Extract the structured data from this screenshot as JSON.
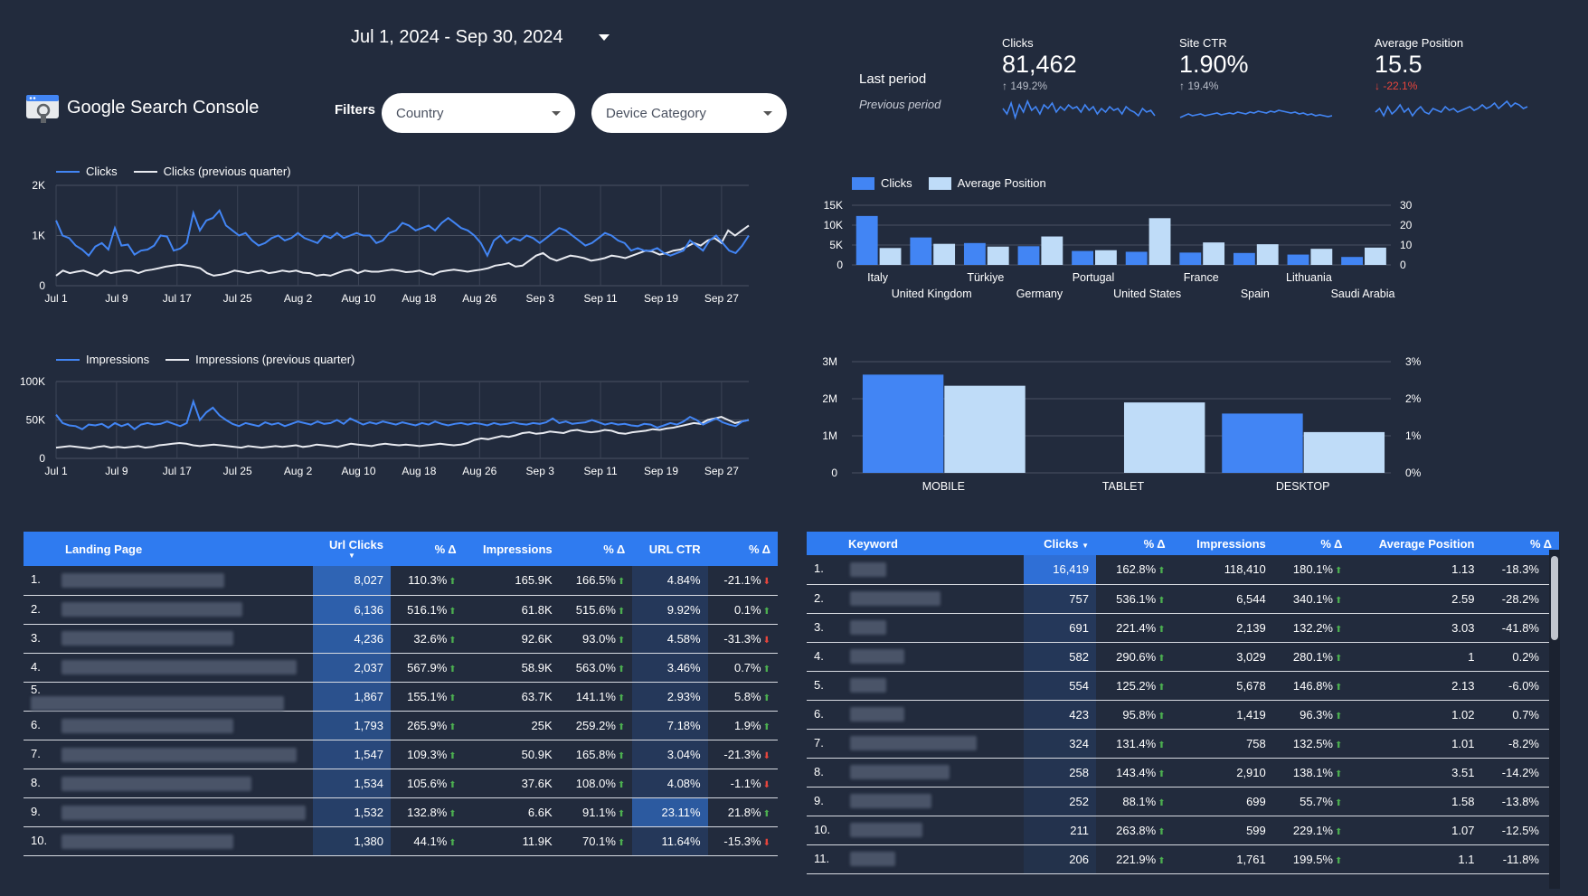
{
  "header": {
    "date_range": "Jul 1, 2024 - Sep 30, 2024",
    "brand": "Google Search Console",
    "filters_label": "Filters",
    "filter_country": "Country",
    "filter_device": "Device Category",
    "last_period": "Last period",
    "previous_period": "Previous period"
  },
  "kpis": [
    {
      "label": "Clicks",
      "value": "81,462",
      "delta": "149.2%",
      "dir": "up"
    },
    {
      "label": "Site CTR",
      "value": "1.90%",
      "delta": "19.4%",
      "dir": "up"
    },
    {
      "label": "Average Position",
      "value": "15.5",
      "delta": "-22.1%",
      "dir": "down"
    }
  ],
  "colors": {
    "primary": "#4285f4",
    "secondary": "#bfdcf8",
    "prev_line": "#e8eaf0",
    "bg": "#222b3d",
    "accent_header": "#2f7bf0"
  },
  "chart_data": [
    {
      "type": "line",
      "legend": [
        "Clicks",
        "Clicks (previous quarter)"
      ],
      "x_ticks": [
        "Jul 1",
        "Jul 9",
        "Jul 17",
        "Jul 25",
        "Aug 2",
        "Aug 10",
        "Aug 18",
        "Aug 26",
        "Sep 3",
        "Sep 11",
        "Sep 19",
        "Sep 27"
      ],
      "y_ticks": [
        "0",
        "1K",
        "2K"
      ],
      "ylim": [
        0,
        2000
      ],
      "series": [
        {
          "name": "Clicks",
          "values": [
            1300,
            1000,
            950,
            800,
            720,
            600,
            780,
            850,
            720,
            1150,
            800,
            820,
            620,
            700,
            720,
            800,
            1000,
            980,
            700,
            740,
            850,
            1450,
            1100,
            1300,
            1350,
            1500,
            1200,
            1100,
            1000,
            1050,
            900,
            800,
            850,
            950,
            1000,
            900,
            950,
            1050,
            950,
            900,
            850,
            1000,
            950,
            1050,
            950,
            1000,
            1050,
            1000,
            1000,
            850,
            900,
            1050,
            1100,
            1250,
            1200,
            1100,
            1150,
            1200,
            1100,
            1250,
            1350,
            1250,
            1150,
            1100,
            1000,
            850,
            600,
            900,
            1000,
            850,
            950,
            900,
            1000,
            950,
            850,
            950,
            1050,
            1150,
            1100,
            1000,
            900,
            800,
            850,
            950,
            1050,
            1000,
            900,
            850,
            700,
            750,
            700,
            700,
            750,
            650,
            600,
            650,
            700,
            900,
            800,
            700,
            900,
            1000,
            850,
            700,
            650,
            800,
            1000
          ]
        },
        {
          "name": "Clicks (previous quarter)",
          "values": [
            200,
            300,
            250,
            280,
            300,
            250,
            200,
            300,
            250,
            280,
            300,
            300,
            250,
            300,
            320,
            350,
            380,
            400,
            420,
            400,
            380,
            350,
            250,
            200,
            220,
            250,
            300,
            280,
            250,
            280,
            300,
            250,
            270,
            300,
            280,
            300,
            260,
            250,
            200,
            220,
            200,
            250,
            300,
            320,
            250,
            300,
            280,
            280,
            300,
            320,
            300,
            270,
            280,
            300,
            250,
            220,
            280,
            300,
            320,
            300,
            280,
            300,
            320,
            350,
            400,
            420,
            450,
            380,
            400,
            500,
            600,
            650,
            550,
            500,
            550,
            600,
            580,
            550,
            500,
            520,
            550,
            600,
            580,
            550,
            600,
            650,
            700,
            680,
            620,
            650,
            700,
            720,
            780,
            850,
            800,
            900,
            950,
            850,
            1100,
            1000,
            1100,
            1200
          ]
        }
      ]
    },
    {
      "type": "line",
      "legend": [
        "Impressions",
        "Impressions (previous quarter)"
      ],
      "x_ticks": [
        "Jul 1",
        "Jul 9",
        "Jul 17",
        "Jul 25",
        "Aug 2",
        "Aug 10",
        "Aug 18",
        "Aug 26",
        "Sep 3",
        "Sep 11",
        "Sep 19",
        "Sep 27"
      ],
      "y_ticks": [
        "0",
        "50K",
        "100K"
      ],
      "ylim": [
        0,
        100000
      ],
      "series": [
        {
          "name": "Impressions",
          "values": [
            57000,
            46000,
            43000,
            42000,
            38000,
            44000,
            43000,
            45000,
            40000,
            46000,
            42000,
            45000,
            38000,
            44000,
            46000,
            44000,
            45000,
            48000,
            45000,
            42000,
            46000,
            74000,
            50000,
            60000,
            66000,
            56000,
            50000,
            45000,
            42000,
            46000,
            44000,
            42000,
            47000,
            44000,
            46000,
            42000,
            45000,
            48000,
            46000,
            44000,
            48000,
            45000,
            46000,
            50000,
            45000,
            52000,
            48000,
            44000,
            47000,
            45000,
            48000,
            46000,
            44000,
            47000,
            45000,
            43000,
            46000,
            44000,
            48000,
            45000,
            43000,
            45000,
            46000,
            44000,
            46000,
            45000,
            43000,
            46000,
            44000,
            45000,
            47000,
            45000,
            44000,
            46000,
            45000,
            47000,
            52000,
            46000,
            48000,
            45000,
            46000,
            47000,
            50000,
            47000,
            44000,
            46000,
            44000,
            45000,
            43000,
            42000,
            45000,
            44000,
            40000,
            43000,
            46000,
            44000,
            48000,
            54000,
            50000,
            44000,
            48000,
            52000,
            47000,
            44000,
            42000,
            48000,
            50000
          ]
        },
        {
          "name": "Impressions (previous quarter)",
          "values": [
            14000,
            15000,
            16000,
            15000,
            14000,
            13000,
            15000,
            16000,
            14000,
            15000,
            14000,
            15000,
            16000,
            14000,
            15000,
            17000,
            18000,
            19000,
            20000,
            19000,
            17000,
            16000,
            17000,
            18000,
            17000,
            16000,
            15000,
            14000,
            16000,
            15000,
            14000,
            15000,
            16000,
            15000,
            16000,
            17000,
            15000,
            16000,
            18000,
            17000,
            16000,
            15000,
            17000,
            19000,
            18000,
            17000,
            16000,
            18000,
            19000,
            18000,
            17000,
            18000,
            17000,
            16000,
            17000,
            18000,
            19000,
            18000,
            17000,
            18000,
            20000,
            24000,
            26000,
            25000,
            27000,
            29000,
            28000,
            30000,
            33000,
            34000,
            32000,
            33000,
            35000,
            34000,
            33000,
            36000,
            37000,
            35000,
            34000,
            35000,
            37000,
            36000,
            33000,
            32000,
            34000,
            35000,
            36000,
            38000,
            37000,
            39000,
            40000,
            42000,
            44000,
            46000,
            45000,
            50000,
            52000,
            54000,
            50000,
            46000,
            48000,
            50000
          ]
        }
      ]
    },
    {
      "type": "bar",
      "legend": [
        "Clicks",
        "Average Position"
      ],
      "categories": [
        "Italy",
        "United Kingdom",
        "Türkiye",
        "Germany",
        "Portugal",
        "United States",
        "France",
        "Spain",
        "Lithuania",
        "Saudi Arabia"
      ],
      "series": [
        {
          "name": "Clicks",
          "values": [
            12300,
            6900,
            5500,
            4700,
            3500,
            3300,
            3100,
            3000,
            2600,
            2000
          ]
        },
        {
          "name": "Average Position",
          "values": [
            8.5,
            10.6,
            9.2,
            14.3,
            7.4,
            23.5,
            11.3,
            10.4,
            8.1,
            8.7
          ]
        }
      ],
      "y_ticks": [
        "0",
        "5K",
        "10K",
        "15K"
      ],
      "y2_ticks": [
        "0",
        "10",
        "20",
        "30"
      ],
      "ylim": [
        0,
        15000
      ],
      "y2lim": [
        0,
        30
      ]
    },
    {
      "type": "bar",
      "categories": [
        "MOBILE",
        "TABLET",
        "DESKTOP"
      ],
      "series": [
        {
          "name": "Impressions",
          "values": [
            2650000,
            0,
            1600000
          ]
        },
        {
          "name": "CTR",
          "values": [
            2.35,
            1.9,
            1.1
          ]
        }
      ],
      "y_ticks": [
        "0",
        "1M",
        "2M",
        "3M"
      ],
      "y2_ticks": [
        "0%",
        "1%",
        "2%",
        "3%"
      ],
      "ylim": [
        0,
        3000000
      ],
      "y2lim": [
        0,
        3
      ]
    }
  ],
  "landing_table": {
    "headers": [
      "Landing Page",
      "Url Clicks",
      "% Δ",
      "Impressions",
      "% Δ",
      "URL CTR",
      "% Δ"
    ],
    "rows": [
      {
        "n": "1.",
        "clicks": "8,027",
        "d1": "110.3%",
        "d1dir": "up",
        "impr": "165.9K",
        "d2": "166.5%",
        "d2dir": "up",
        "ctr": "4.84%",
        "d3": "-21.1%",
        "d3dir": "down"
      },
      {
        "n": "2.",
        "clicks": "6,136",
        "d1": "516.1%",
        "d1dir": "up",
        "impr": "61.8K",
        "d2": "515.6%",
        "d2dir": "up",
        "ctr": "9.92%",
        "d3": "0.1%",
        "d3dir": "up"
      },
      {
        "n": "3.",
        "clicks": "4,236",
        "d1": "32.6%",
        "d1dir": "up",
        "impr": "92.6K",
        "d2": "93.0%",
        "d2dir": "up",
        "ctr": "4.58%",
        "d3": "-31.3%",
        "d3dir": "down"
      },
      {
        "n": "4.",
        "clicks": "2,037",
        "d1": "567.9%",
        "d1dir": "up",
        "impr": "58.9K",
        "d2": "563.0%",
        "d2dir": "up",
        "ctr": "3.46%",
        "d3": "0.7%",
        "d3dir": "up"
      },
      {
        "n": "5.",
        "clicks": "1,867",
        "d1": "155.1%",
        "d1dir": "up",
        "impr": "63.7K",
        "d2": "141.1%",
        "d2dir": "up",
        "ctr": "2.93%",
        "d3": "5.8%",
        "d3dir": "up"
      },
      {
        "n": "6.",
        "clicks": "1,793",
        "d1": "265.9%",
        "d1dir": "up",
        "impr": "25K",
        "d2": "259.2%",
        "d2dir": "up",
        "ctr": "7.18%",
        "d3": "1.9%",
        "d3dir": "up"
      },
      {
        "n": "7.",
        "clicks": "1,547",
        "d1": "109.3%",
        "d1dir": "up",
        "impr": "50.9K",
        "d2": "165.8%",
        "d2dir": "up",
        "ctr": "3.04%",
        "d3": "-21.3%",
        "d3dir": "down"
      },
      {
        "n": "8.",
        "clicks": "1,534",
        "d1": "105.6%",
        "d1dir": "up",
        "impr": "37.6K",
        "d2": "108.0%",
        "d2dir": "up",
        "ctr": "4.08%",
        "d3": "-1.1%",
        "d3dir": "down"
      },
      {
        "n": "9.",
        "clicks": "1,532",
        "d1": "132.8%",
        "d1dir": "up",
        "impr": "6.6K",
        "d2": "91.1%",
        "d2dir": "up",
        "ctr": "23.11%",
        "d3": "21.8%",
        "d3dir": "up"
      },
      {
        "n": "10.",
        "clicks": "1,380",
        "d1": "44.1%",
        "d1dir": "up",
        "impr": "11.9K",
        "d2": "70.1%",
        "d2dir": "up",
        "ctr": "11.64%",
        "d3": "-15.3%",
        "d3dir": "down"
      }
    ]
  },
  "keyword_table": {
    "headers": [
      "Keyword",
      "Clicks",
      "% Δ",
      "Impressions",
      "% Δ",
      "Average Position",
      "% Δ"
    ],
    "rows": [
      {
        "n": "1.",
        "clicks": "16,419",
        "d1": "162.8%",
        "d1dir": "up",
        "impr": "118,410",
        "d2": "180.1%",
        "d2dir": "up",
        "pos": "1.13",
        "d3": "-18.3%",
        "d3dir": "down"
      },
      {
        "n": "2.",
        "clicks": "757",
        "d1": "536.1%",
        "d1dir": "up",
        "impr": "6,544",
        "d2": "340.1%",
        "d2dir": "up",
        "pos": "2.59",
        "d3": "-28.2%",
        "d3dir": "down"
      },
      {
        "n": "3.",
        "clicks": "691",
        "d1": "221.4%",
        "d1dir": "up",
        "impr": "2,139",
        "d2": "132.2%",
        "d2dir": "up",
        "pos": "3.03",
        "d3": "-41.8%",
        "d3dir": "down"
      },
      {
        "n": "4.",
        "clicks": "582",
        "d1": "290.6%",
        "d1dir": "up",
        "impr": "3,029",
        "d2": "280.1%",
        "d2dir": "up",
        "pos": "1",
        "d3": "0.2%",
        "d3dir": "up"
      },
      {
        "n": "5.",
        "clicks": "554",
        "d1": "125.2%",
        "d1dir": "up",
        "impr": "5,678",
        "d2": "146.8%",
        "d2dir": "up",
        "pos": "2.13",
        "d3": "-6.0%",
        "d3dir": "down"
      },
      {
        "n": "6.",
        "clicks": "423",
        "d1": "95.8%",
        "d1dir": "up",
        "impr": "1,419",
        "d2": "96.3%",
        "d2dir": "up",
        "pos": "1.02",
        "d3": "0.7%",
        "d3dir": "up"
      },
      {
        "n": "7.",
        "clicks": "324",
        "d1": "131.4%",
        "d1dir": "up",
        "impr": "758",
        "d2": "132.5%",
        "d2dir": "up",
        "pos": "1.01",
        "d3": "-8.2%",
        "d3dir": "down"
      },
      {
        "n": "8.",
        "clicks": "258",
        "d1": "143.4%",
        "d1dir": "up",
        "impr": "2,910",
        "d2": "138.1%",
        "d2dir": "up",
        "pos": "3.51",
        "d3": "-14.2%",
        "d3dir": "down"
      },
      {
        "n": "9.",
        "clicks": "252",
        "d1": "88.1%",
        "d1dir": "up",
        "impr": "699",
        "d2": "55.7%",
        "d2dir": "up",
        "pos": "1.58",
        "d3": "-13.8%",
        "d3dir": "down"
      },
      {
        "n": "10.",
        "clicks": "211",
        "d1": "263.8%",
        "d1dir": "up",
        "impr": "599",
        "d2": "229.1%",
        "d2dir": "up",
        "pos": "1.07",
        "d3": "-12.5%",
        "d3dir": "down"
      },
      {
        "n": "11.",
        "clicks": "206",
        "d1": "221.9%",
        "d1dir": "up",
        "impr": "1,761",
        "d2": "199.5%",
        "d2dir": "up",
        "pos": "1.1",
        "d3": "-11.8%",
        "d3dir": "down"
      }
    ]
  }
}
